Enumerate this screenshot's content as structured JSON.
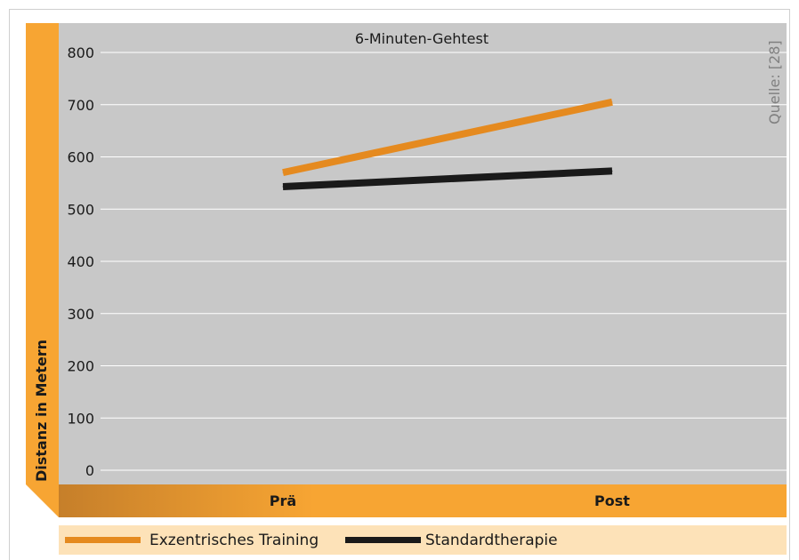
{
  "chart_data": {
    "type": "line",
    "title": "6-Minuten-Gehtest",
    "ylabel": "Distanz in Metern",
    "xlabel": "",
    "source": "Quelle: [28]",
    "categories": [
      "Prä",
      "Post"
    ],
    "ylim": [
      0,
      800
    ],
    "yticks": [
      0,
      100,
      200,
      300,
      400,
      500,
      600,
      700,
      800
    ],
    "grid": true,
    "legend_position": "bottom",
    "series": [
      {
        "name": "Exzentrisches Training",
        "values": [
          570,
          705
        ],
        "color": "#e58a1f"
      },
      {
        "name": "Standardtherapie",
        "values": [
          543,
          573
        ],
        "color": "#1a1a1a"
      }
    ],
    "colors": {
      "plot_background": "#c8c8c8",
      "grid": "#ffffff",
      "accent_orange": "#f7a533",
      "legend_background": "#fde2b8"
    }
  }
}
